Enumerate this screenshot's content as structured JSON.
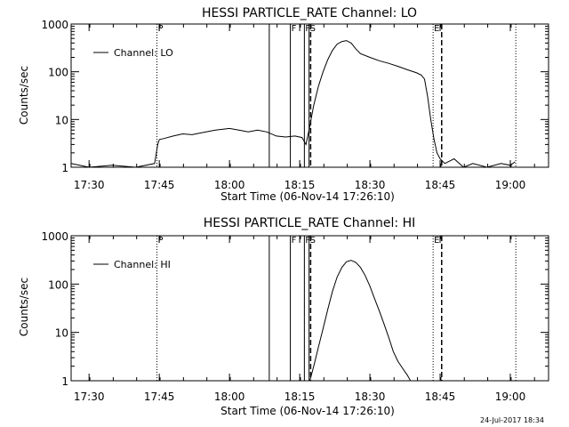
{
  "footer": {
    "timestamp": "24-Jul-2017 18:34"
  },
  "chart_data": [
    {
      "type": "line",
      "title": "HESSI PARTICLE_RATE Channel: LO",
      "xlabel": "Start Time (06-Nov-14 17:26:10)",
      "ylabel": "Counts/sec",
      "yscale": "log",
      "ylim": [
        1,
        1000
      ],
      "xlim_minutes_since_start": [
        0,
        102
      ],
      "xticks": [
        "17:30",
        "17:45",
        "18:00",
        "18:15",
        "18:30",
        "18:45",
        "19:00"
      ],
      "yticks": [
        "1",
        "10",
        "100",
        "1000"
      ],
      "legend": {
        "label": "Channel: LO",
        "placement": "top-left"
      },
      "markers": [
        {
          "time": "17:44:30",
          "label": "P",
          "style": "dotted"
        },
        {
          "time": "18:08:30",
          "label": "",
          "style": "solid"
        },
        {
          "time": "18:13:00",
          "label": "F",
          "style": "solid"
        },
        {
          "time": "18:16:00",
          "label": "F",
          "style": "solid"
        },
        {
          "time": "18:17:00",
          "label": "S",
          "style": "solid"
        },
        {
          "time": "18:17:20",
          "label": "",
          "style": "dashed"
        },
        {
          "time": "18:43:30",
          "label": "E",
          "style": "dotted"
        },
        {
          "time": "18:45:20",
          "label": "",
          "style": "dashed"
        },
        {
          "time": "19:01:10",
          "label": "",
          "style": "dotted"
        }
      ],
      "series": [
        {
          "name": "Channel: LO",
          "x": [
            "17:26:10",
            "17:30:00",
            "17:35:00",
            "17:40:00",
            "17:44:00",
            "17:44:40",
            "17:45:00",
            "17:46:00",
            "17:48:00",
            "17:50:00",
            "17:52:00",
            "17:55:00",
            "17:57:00",
            "18:00:00",
            "18:02:00",
            "18:04:00",
            "18:06:00",
            "18:08:00",
            "18:10:00",
            "18:12:00",
            "18:14:00",
            "18:15:30",
            "18:16:20",
            "18:17:00",
            "18:18:00",
            "18:19:00",
            "18:20:00",
            "18:21:00",
            "18:22:00",
            "18:23:00",
            "18:24:00",
            "18:25:00",
            "18:26:00",
            "18:27:00",
            "18:28:00",
            "18:30:00",
            "18:32:00",
            "18:34:00",
            "18:36:00",
            "18:38:00",
            "18:40:00",
            "18:41:00",
            "18:41:40",
            "18:42:20",
            "18:43:00",
            "18:43:40",
            "18:44:20",
            "18:45:00",
            "18:46:00",
            "18:48:00",
            "18:50:00",
            "18:52:00",
            "18:55:00",
            "18:58:00",
            "19:00:00",
            "19:01:00"
          ],
          "y": [
            1.2,
            1,
            1.1,
            1,
            1.2,
            3,
            3.8,
            4,
            4.5,
            5,
            4.8,
            5.5,
            6,
            6.5,
            6,
            5.5,
            6,
            5.5,
            4.5,
            4.3,
            4.5,
            4.2,
            3,
            6,
            20,
            50,
            100,
            180,
            280,
            380,
            430,
            450,
            400,
            300,
            240,
            200,
            170,
            150,
            130,
            110,
            95,
            85,
            70,
            30,
            10,
            4,
            2,
            1.5,
            1.2,
            1.5,
            1,
            1.2,
            1,
            1.2,
            1.1,
            1.3
          ]
        }
      ]
    },
    {
      "type": "line",
      "title": "HESSI PARTICLE_RATE Channel: HI",
      "xlabel": "Start Time (06-Nov-14 17:26:10)",
      "ylabel": "Counts/sec",
      "yscale": "log",
      "ylim": [
        1,
        1000
      ],
      "xlim_minutes_since_start": [
        0,
        102
      ],
      "xticks": [
        "17:30",
        "17:45",
        "18:00",
        "18:15",
        "18:30",
        "18:45",
        "19:00"
      ],
      "yticks": [
        "1",
        "10",
        "100",
        "1000"
      ],
      "legend": {
        "label": "Channel: HI",
        "placement": "top-left"
      },
      "markers": [
        {
          "time": "17:44:30",
          "label": "P",
          "style": "dotted"
        },
        {
          "time": "18:08:30",
          "label": "",
          "style": "solid"
        },
        {
          "time": "18:13:00",
          "label": "F",
          "style": "solid"
        },
        {
          "time": "18:16:00",
          "label": "F",
          "style": "solid"
        },
        {
          "time": "18:17:00",
          "label": "S",
          "style": "solid"
        },
        {
          "time": "18:17:20",
          "label": "",
          "style": "dashed"
        },
        {
          "time": "18:43:30",
          "label": "E",
          "style": "dotted"
        },
        {
          "time": "18:45:20",
          "label": "",
          "style": "dashed"
        },
        {
          "time": "19:01:10",
          "label": "",
          "style": "dotted"
        }
      ],
      "series": [
        {
          "name": "Channel: HI",
          "x": [
            "18:17:10",
            "18:18:00",
            "18:19:00",
            "18:20:00",
            "18:21:00",
            "18:22:00",
            "18:23:00",
            "18:24:00",
            "18:25:00",
            "18:26:00",
            "18:27:00",
            "18:28:00",
            "18:29:00",
            "18:30:00",
            "18:31:00",
            "18:32:00",
            "18:33:00",
            "18:34:00",
            "18:35:00",
            "18:36:00",
            "18:37:00",
            "18:38:00",
            "18:38:40"
          ],
          "y": [
            1,
            2,
            5,
            12,
            30,
            70,
            140,
            220,
            290,
            310,
            280,
            220,
            150,
            90,
            50,
            28,
            15,
            8,
            4,
            2.5,
            1.8,
            1.3,
            1
          ]
        }
      ]
    }
  ]
}
